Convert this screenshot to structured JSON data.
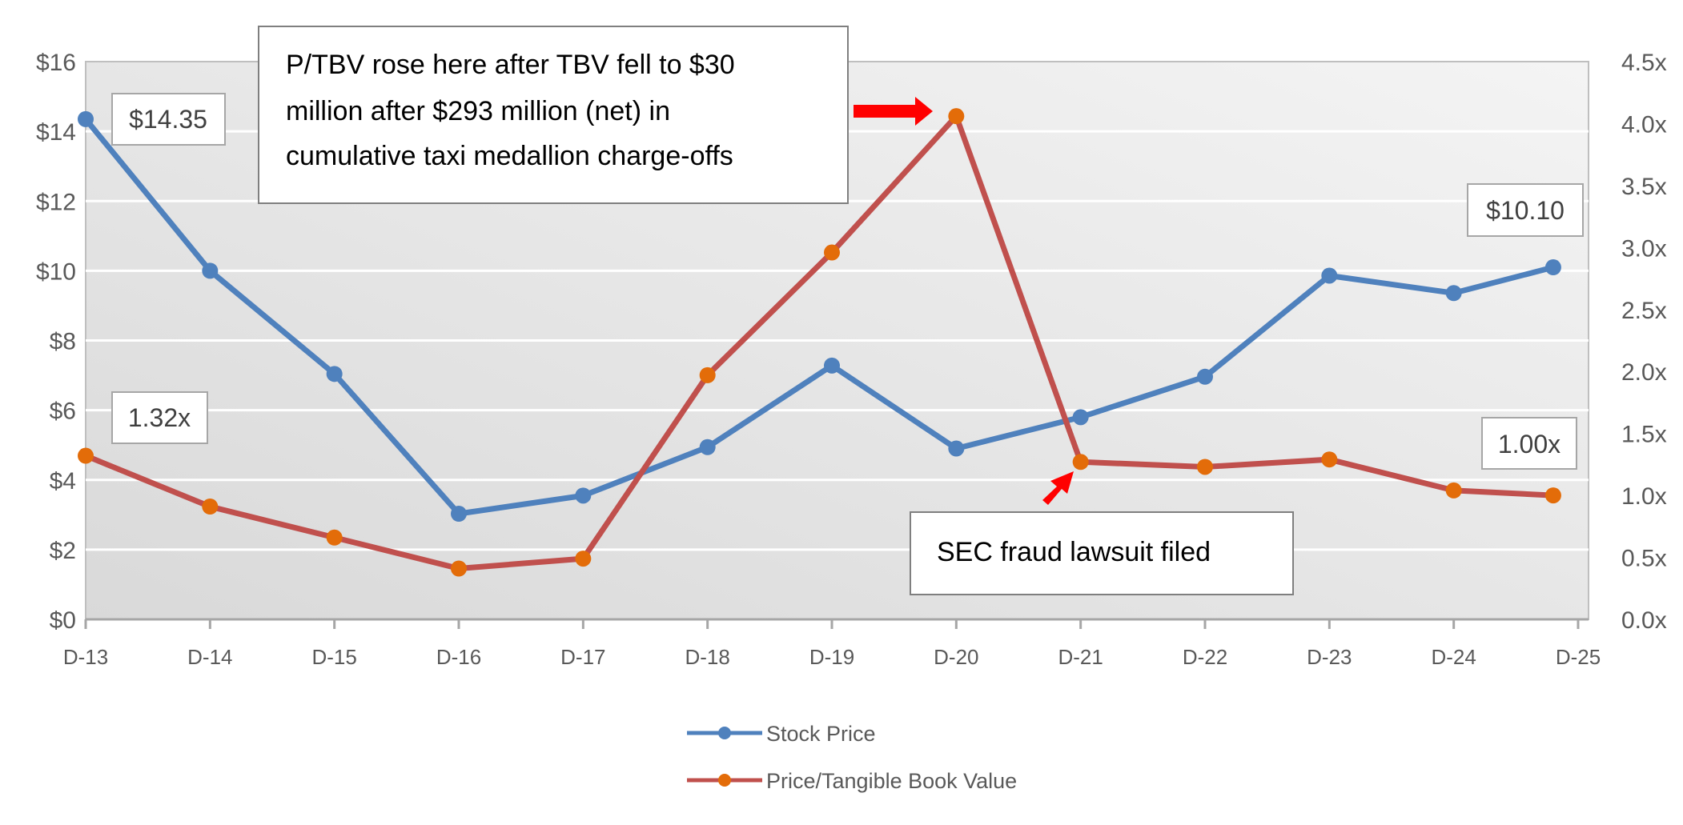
{
  "chart_data": {
    "type": "line",
    "title": "",
    "x_tick_labels": [
      "D-13",
      "D-14",
      "D-15",
      "D-16",
      "D-17",
      "D-18",
      "D-19",
      "D-20",
      "D-21",
      "D-22",
      "D-23",
      "D-24",
      "D-25"
    ],
    "x": [
      13,
      14,
      15,
      16,
      17,
      18,
      19,
      20,
      21,
      22,
      23,
      24,
      24.8
    ],
    "xlim": [
      13,
      25
    ],
    "y_left": {
      "ticks": [
        "$0",
        "$2",
        "$4",
        "$6",
        "$8",
        "$10",
        "$12",
        "$14",
        "$16"
      ],
      "range": [
        0,
        16
      ]
    },
    "y_right": {
      "ticks": [
        "0.0x",
        "0.5x",
        "1.0x",
        "1.5x",
        "2.0x",
        "2.5x",
        "3.0x",
        "3.5x",
        "4.0x",
        "4.5x"
      ],
      "range": [
        0,
        4.5
      ]
    },
    "grid": true,
    "legend_position": "bottom",
    "series": [
      {
        "name": "Stock Price",
        "axis": "left",
        "color": "#4F81BD",
        "marker_color": "#4F81BD",
        "values": [
          14.35,
          10.0,
          7.04,
          3.03,
          3.55,
          4.94,
          7.28,
          4.9,
          5.8,
          6.96,
          9.86,
          9.36,
          10.1
        ]
      },
      {
        "name": "Price/Tangible Book Value",
        "axis": "right",
        "color": "#C0504D",
        "marker_color": "#E36C09",
        "values": [
          1.32,
          0.91,
          0.66,
          0.41,
          0.49,
          1.97,
          2.96,
          4.06,
          1.27,
          1.23,
          1.29,
          1.04,
          1.0
        ]
      }
    ],
    "data_labels": {
      "stock_first": "$14.35",
      "stock_last": "$10.10",
      "ptbv_first": "1.32x",
      "ptbv_last": "1.00x"
    },
    "annotations": {
      "tbv_note": [
        "P/TBV rose here after TBV fell to $30",
        "million after $293 million (net) in",
        "cumulative taxi medallion charge-offs"
      ],
      "sec_note": "SEC fraud lawsuit filed",
      "arrow_color": "#FF0000"
    }
  }
}
